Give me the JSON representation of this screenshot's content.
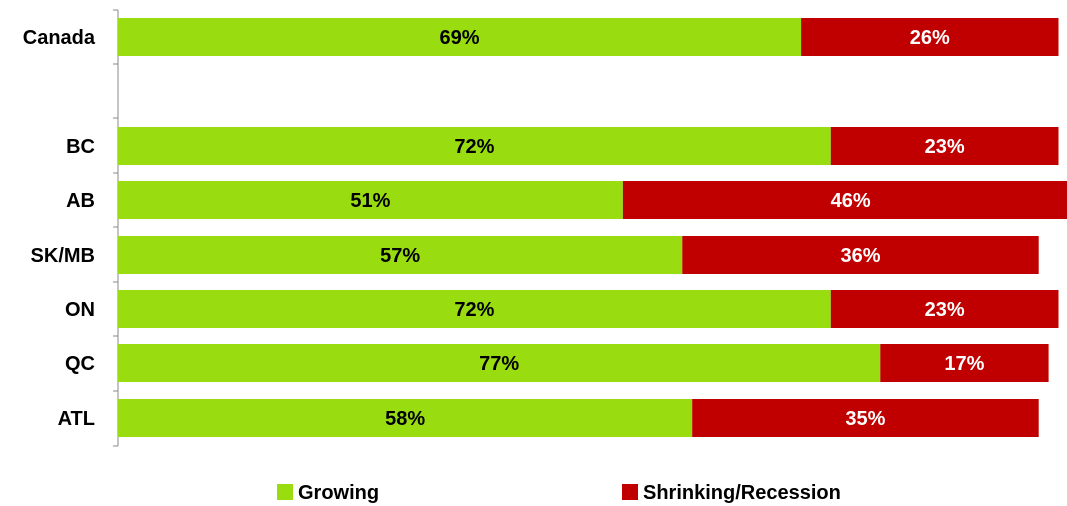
{
  "chart_data": {
    "type": "bar",
    "orientation": "horizontal",
    "stacked": true,
    "categories": [
      "Canada",
      "BC",
      "AB",
      "SK/MB",
      "ON",
      "QC",
      "ATL"
    ],
    "series": [
      {
        "name": "Growing",
        "color": "#99dd11",
        "label_color": "#000000",
        "values": [
          69,
          72,
          51,
          57,
          72,
          77,
          58
        ],
        "labels": [
          "69%",
          "72%",
          "51%",
          "57%",
          "72%",
          "77%",
          "58%"
        ]
      },
      {
        "name": "Shrinking/Recession",
        "color": "#c00000",
        "label_color": "#ffffff",
        "values": [
          26,
          23,
          46,
          36,
          23,
          17,
          35
        ],
        "labels": [
          "26%",
          "23%",
          "46%",
          "36%",
          "23%",
          "17%",
          "35%"
        ]
      }
    ],
    "xlim": [
      0,
      100
    ],
    "grid": false,
    "legend_position": "bottom"
  }
}
